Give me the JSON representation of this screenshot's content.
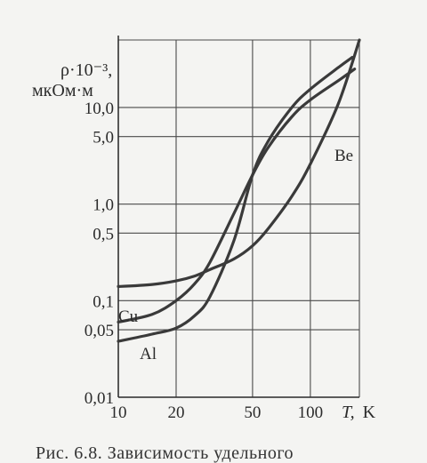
{
  "chart_data": {
    "type": "line",
    "xscale": "log",
    "yscale": "log",
    "xlim": [
      10,
      180
    ],
    "ylim": [
      0.01,
      50
    ],
    "grid": true,
    "x_ticks": [
      {
        "value": 10,
        "label": "10"
      },
      {
        "value": 20,
        "label": "20"
      },
      {
        "value": 50,
        "label": "50"
      },
      {
        "value": 100,
        "label": "100"
      }
    ],
    "y_ticks": [
      {
        "value": 0.01,
        "label": "0,01"
      },
      {
        "value": 0.05,
        "label": "0,05"
      },
      {
        "value": 0.1,
        "label": "0,1"
      },
      {
        "value": 0.5,
        "label": "0,5"
      },
      {
        "value": 1,
        "label": "1,0"
      },
      {
        "value": 5,
        "label": "5,0"
      },
      {
        "value": 10,
        "label": "10,0"
      }
    ],
    "y_gridlines": [
      0.01,
      0.05,
      0.1,
      0.5,
      1,
      5,
      10,
      50
    ],
    "x_gridlines": [
      10,
      20,
      50,
      100,
      180
    ],
    "ylabel_line1": "ρ·10⁻³,",
    "ylabel_line2": "мкОм·м",
    "xlabel_italic": "T,",
    "xlabel_unit": "K",
    "series": [
      {
        "name": "Cu",
        "points": [
          [
            10,
            0.06
          ],
          [
            15,
            0.072
          ],
          [
            20,
            0.1
          ],
          [
            25,
            0.15
          ],
          [
            30,
            0.25
          ],
          [
            40,
            0.8
          ],
          [
            50,
            2.0
          ],
          [
            60,
            3.8
          ],
          [
            80,
            8
          ],
          [
            100,
            12
          ],
          [
            140,
            19
          ],
          [
            170,
            25
          ]
        ]
      },
      {
        "name": "Al",
        "points": [
          [
            10,
            0.038
          ],
          [
            15,
            0.045
          ],
          [
            20,
            0.052
          ],
          [
            25,
            0.07
          ],
          [
            30,
            0.11
          ],
          [
            40,
            0.42
          ],
          [
            50,
            2.0
          ],
          [
            60,
            4.4
          ],
          [
            80,
            10
          ],
          [
            100,
            15.5
          ],
          [
            140,
            26
          ],
          [
            165,
            33
          ]
        ]
      },
      {
        "name": "Be",
        "points": [
          [
            10,
            0.14
          ],
          [
            15,
            0.147
          ],
          [
            20,
            0.16
          ],
          [
            25,
            0.18
          ],
          [
            30,
            0.21
          ],
          [
            40,
            0.27
          ],
          [
            50,
            0.37
          ],
          [
            60,
            0.55
          ],
          [
            80,
            1.2
          ],
          [
            100,
            2.6
          ],
          [
            140,
            11
          ],
          [
            180,
            50
          ]
        ]
      }
    ],
    "caption": "Рис. 6.8. Зависимость удельного"
  }
}
